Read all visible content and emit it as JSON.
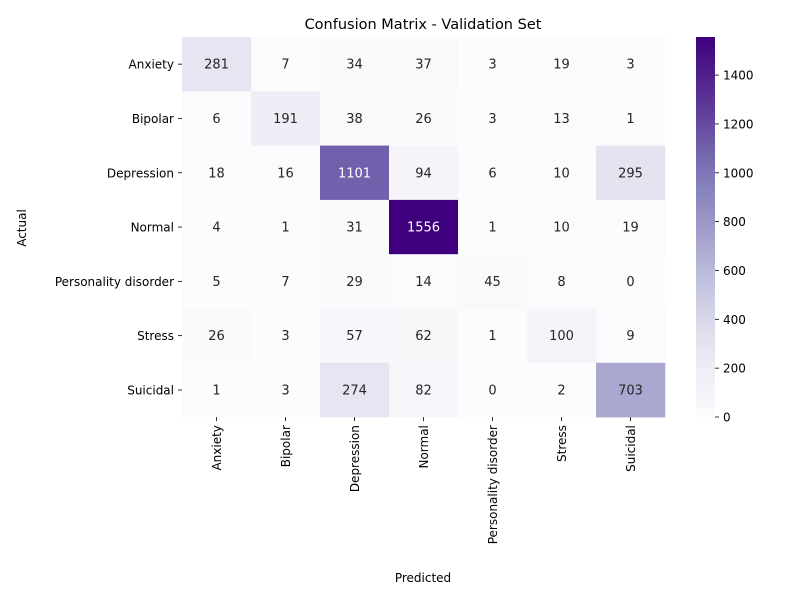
{
  "chart_data": {
    "type": "heatmap",
    "title": "Confusion Matrix - Validation Set",
    "xlabel": "Predicted",
    "ylabel": "Actual",
    "x_categories": [
      "Anxiety",
      "Bipolar",
      "Depression",
      "Normal",
      "Personality disorder",
      "Stress",
      "Suicidal"
    ],
    "y_categories": [
      "Anxiety",
      "Bipolar",
      "Depression",
      "Normal",
      "Personality disorder",
      "Stress",
      "Suicidal"
    ],
    "values": [
      [
        281,
        7,
        34,
        37,
        3,
        19,
        3
      ],
      [
        6,
        191,
        38,
        26,
        3,
        13,
        1
      ],
      [
        18,
        16,
        1101,
        94,
        6,
        10,
        295
      ],
      [
        4,
        1,
        31,
        1556,
        1,
        10,
        19
      ],
      [
        5,
        7,
        29,
        14,
        45,
        8,
        0
      ],
      [
        26,
        3,
        57,
        62,
        1,
        100,
        9
      ],
      [
        1,
        3,
        274,
        82,
        0,
        2,
        703
      ]
    ],
    "colormap": "Purples",
    "colorbar": {
      "range": [
        0,
        1556
      ],
      "ticks": [
        0,
        200,
        400,
        600,
        800,
        1000,
        1200,
        1400
      ]
    },
    "legend": "none",
    "grid": false
  }
}
